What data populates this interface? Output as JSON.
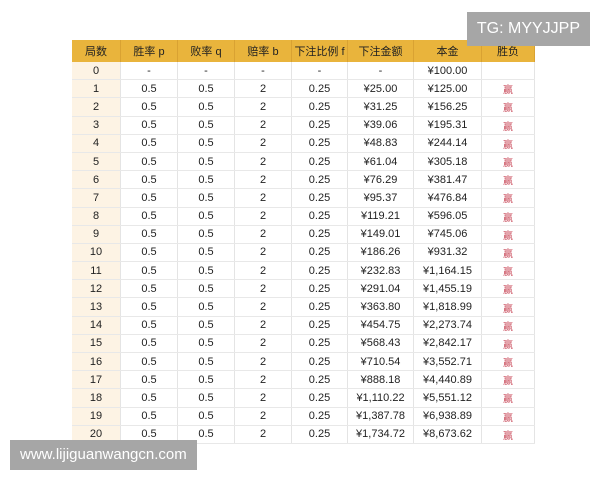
{
  "watermarks": {
    "top": "TG: MYYJJPP",
    "bottom": "www.lijiguanwangcn.com"
  },
  "colors": {
    "header": "#e9b43c",
    "index_column": "#fdf3e4",
    "win_text": "#c94a5a"
  },
  "table": {
    "headers": [
      "局数",
      "胜率 p",
      "败率 q",
      "赔率 b",
      "下注比例 f",
      "下注金额",
      "本金",
      "胜负"
    ],
    "rows": [
      [
        "0",
        "-",
        "-",
        "-",
        "-",
        "-",
        "¥100.00",
        ""
      ],
      [
        "1",
        "0.5",
        "0.5",
        "2",
        "0.25",
        "¥25.00",
        "¥125.00",
        "赢"
      ],
      [
        "2",
        "0.5",
        "0.5",
        "2",
        "0.25",
        "¥31.25",
        "¥156.25",
        "赢"
      ],
      [
        "3",
        "0.5",
        "0.5",
        "2",
        "0.25",
        "¥39.06",
        "¥195.31",
        "赢"
      ],
      [
        "4",
        "0.5",
        "0.5",
        "2",
        "0.25",
        "¥48.83",
        "¥244.14",
        "赢"
      ],
      [
        "5",
        "0.5",
        "0.5",
        "2",
        "0.25",
        "¥61.04",
        "¥305.18",
        "赢"
      ],
      [
        "6",
        "0.5",
        "0.5",
        "2",
        "0.25",
        "¥76.29",
        "¥381.47",
        "赢"
      ],
      [
        "7",
        "0.5",
        "0.5",
        "2",
        "0.25",
        "¥95.37",
        "¥476.84",
        "赢"
      ],
      [
        "8",
        "0.5",
        "0.5",
        "2",
        "0.25",
        "¥119.21",
        "¥596.05",
        "赢"
      ],
      [
        "9",
        "0.5",
        "0.5",
        "2",
        "0.25",
        "¥149.01",
        "¥745.06",
        "赢"
      ],
      [
        "10",
        "0.5",
        "0.5",
        "2",
        "0.25",
        "¥186.26",
        "¥931.32",
        "赢"
      ],
      [
        "11",
        "0.5",
        "0.5",
        "2",
        "0.25",
        "¥232.83",
        "¥1,164.15",
        "赢"
      ],
      [
        "12",
        "0.5",
        "0.5",
        "2",
        "0.25",
        "¥291.04",
        "¥1,455.19",
        "赢"
      ],
      [
        "13",
        "0.5",
        "0.5",
        "2",
        "0.25",
        "¥363.80",
        "¥1,818.99",
        "赢"
      ],
      [
        "14",
        "0.5",
        "0.5",
        "2",
        "0.25",
        "¥454.75",
        "¥2,273.74",
        "赢"
      ],
      [
        "15",
        "0.5",
        "0.5",
        "2",
        "0.25",
        "¥568.43",
        "¥2,842.17",
        "赢"
      ],
      [
        "16",
        "0.5",
        "0.5",
        "2",
        "0.25",
        "¥710.54",
        "¥3,552.71",
        "赢"
      ],
      [
        "17",
        "0.5",
        "0.5",
        "2",
        "0.25",
        "¥888.18",
        "¥4,440.89",
        "赢"
      ],
      [
        "18",
        "0.5",
        "0.5",
        "2",
        "0.25",
        "¥1,110.22",
        "¥5,551.12",
        "赢"
      ],
      [
        "19",
        "0.5",
        "0.5",
        "2",
        "0.25",
        "¥1,387.78",
        "¥6,938.89",
        "赢"
      ],
      [
        "20",
        "0.5",
        "0.5",
        "2",
        "0.25",
        "¥1,734.72",
        "¥8,673.62",
        "赢"
      ]
    ]
  }
}
